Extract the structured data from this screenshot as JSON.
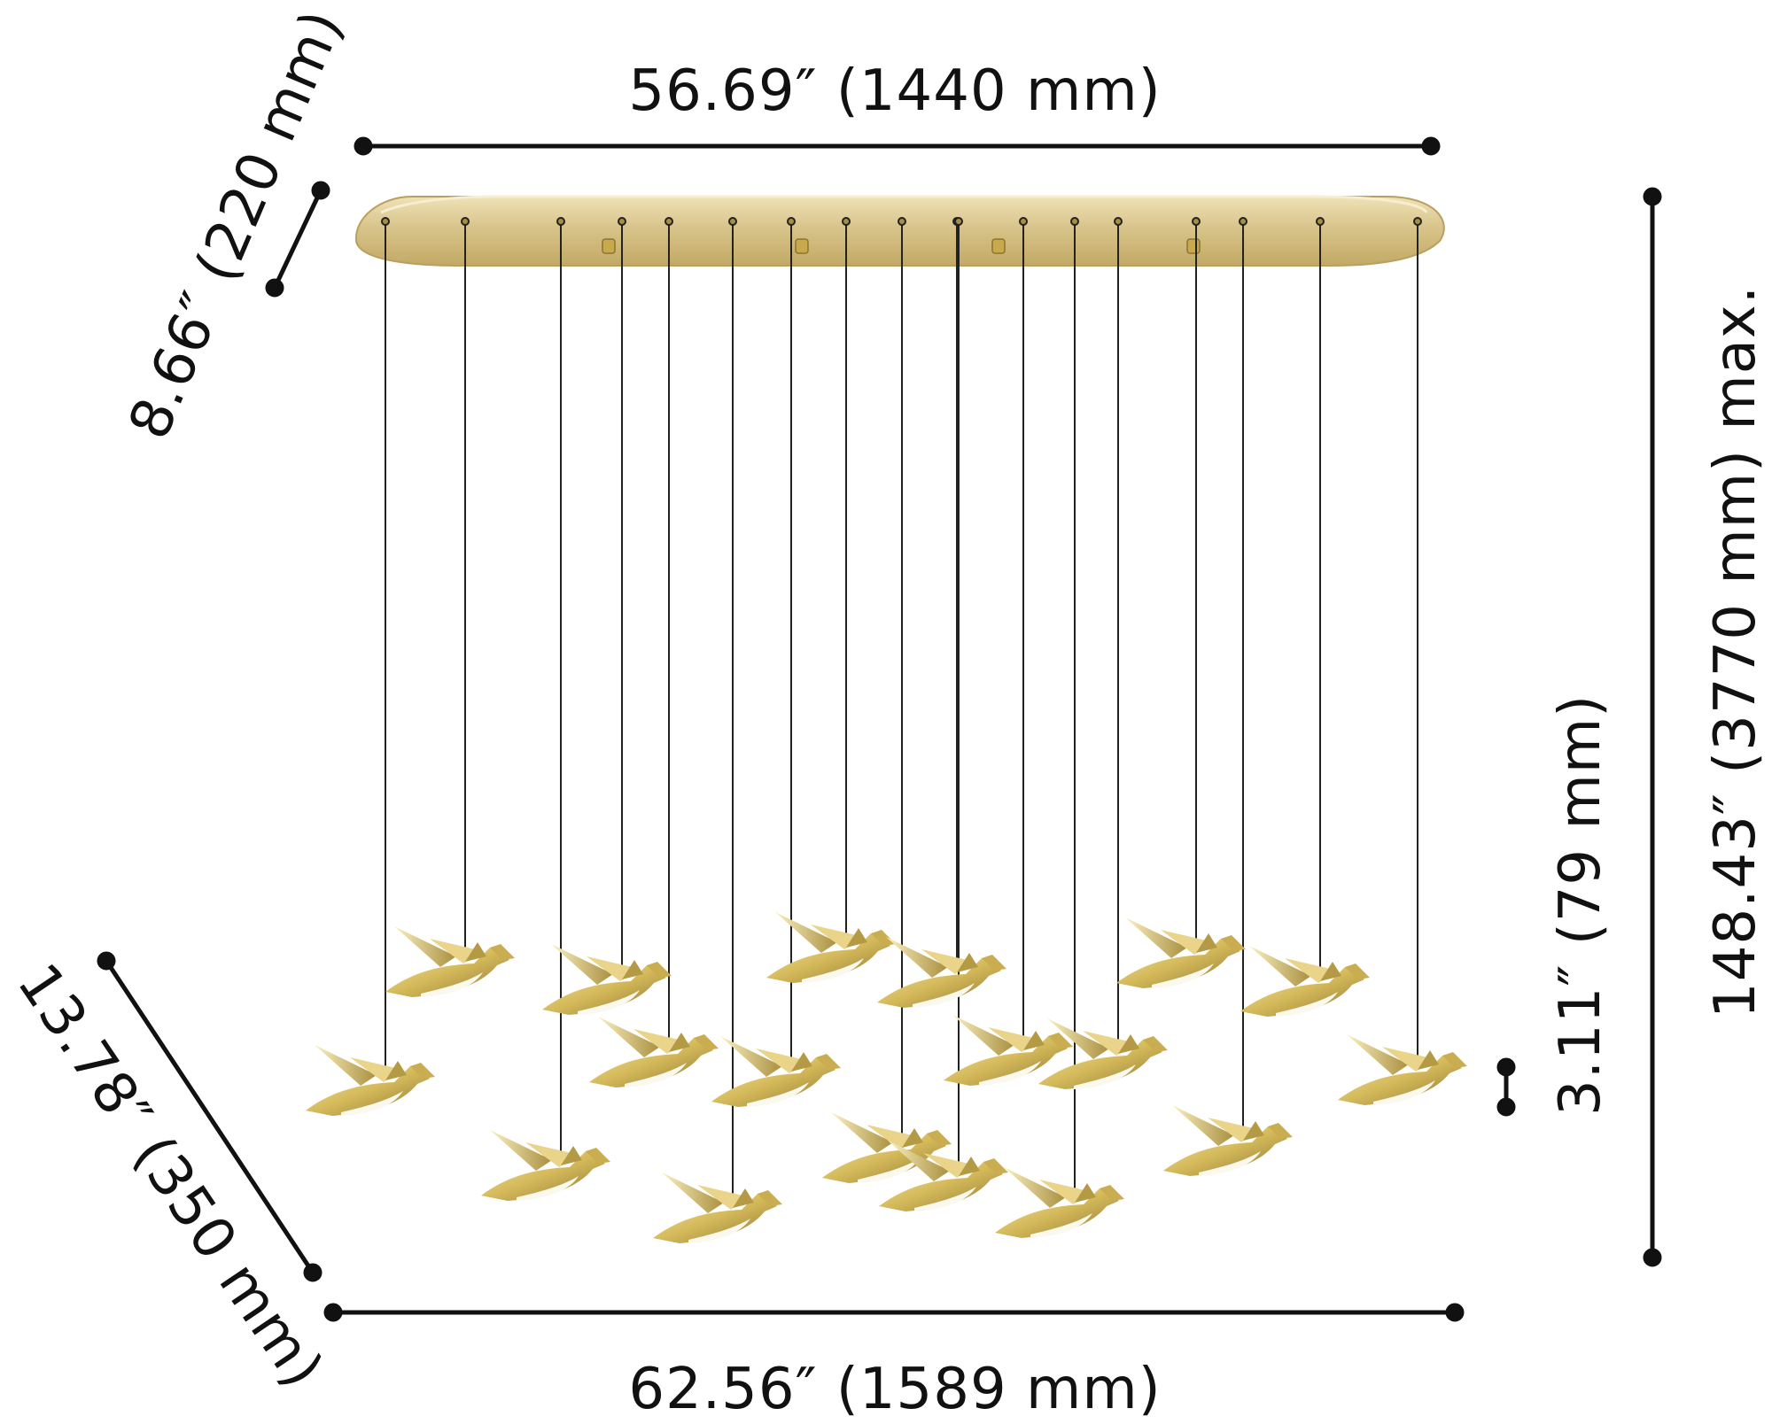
{
  "dimensions": {
    "top_width": "56.69″ (1440 mm)",
    "canopy_depth": "8.66″ (220 mm)",
    "overall_height": "148.43″ (3770 mm) max.",
    "bird_height": "3.11″ (79 mm)",
    "bottom_width": "62.56″ (1589 mm)",
    "spread_depth": "13.78″ (350 mm)"
  },
  "colors": {
    "canopy_gold": "#d8c48a",
    "canopy_edge": "#b9a05e",
    "bird_gold": "#d4b95a",
    "bird_highlight": "#f6e7a8",
    "bird_shadow": "#8c7430",
    "line": "#111111",
    "cable": "#222222"
  }
}
